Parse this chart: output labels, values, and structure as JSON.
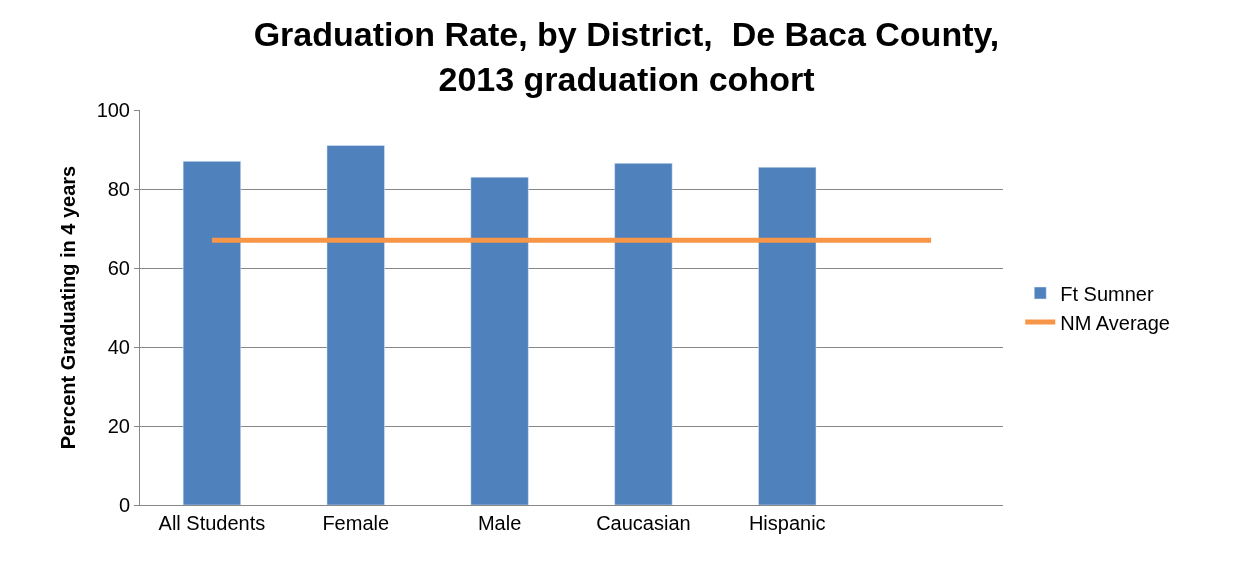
{
  "chart_data": {
    "type": "bar",
    "title": "Graduation Rate, by District,  De Baca County,\n2013 graduation cohort",
    "ylabel": "Percent Graduating in 4 years",
    "categories": [
      "All Students",
      "Female",
      "Male",
      "Caucasian",
      "Hispanic",
      null
    ],
    "series": [
      {
        "name": "Ft Sumner",
        "color": "#4f81bd",
        "values": [
          87,
          91,
          83,
          86.5,
          85.5,
          null
        ]
      },
      {
        "name": "NM Average",
        "type": "line",
        "color": "#f79646",
        "values": [
          67,
          67,
          67,
          67,
          67,
          67
        ]
      }
    ],
    "ylim": [
      0,
      100
    ],
    "yticks": [
      0,
      20,
      40,
      60,
      80,
      100
    ],
    "grid": "y",
    "legend": "right",
    "marker": "none"
  }
}
